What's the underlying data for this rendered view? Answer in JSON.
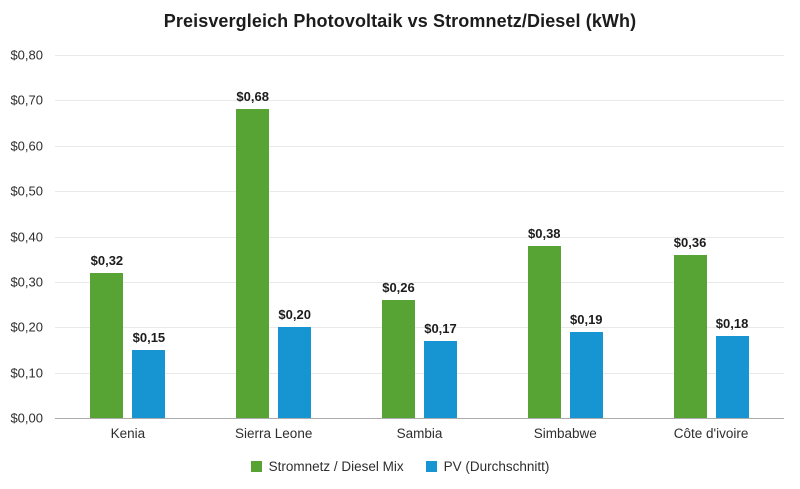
{
  "chart_data": {
    "type": "bar",
    "title": "Preisvergleich Photovoltaik vs Stromnetz/Diesel (kWh)",
    "categories": [
      "Kenia",
      "Sierra Leone",
      "Sambia",
      "Simbabwe",
      "Côte d'ivoire"
    ],
    "series": [
      {
        "name": "Stromnetz / Diesel Mix",
        "color": "#57A333",
        "values": [
          0.32,
          0.68,
          0.26,
          0.38,
          0.36
        ],
        "value_labels": [
          "$0,32",
          "$0,68",
          "$0,26",
          "$0,38",
          "$0,36"
        ]
      },
      {
        "name": "PV (Durchschnitt)",
        "color": "#1795D3",
        "values": [
          0.15,
          0.2,
          0.17,
          0.19,
          0.18
        ],
        "value_labels": [
          "$0,15",
          "$0,20",
          "$0,17",
          "$0,19",
          "$0,18"
        ]
      }
    ],
    "ylim": [
      0,
      0.8
    ],
    "y_ticks": [
      {
        "value": 0.8,
        "label": "$0,80"
      },
      {
        "value": 0.7,
        "label": "$0,70"
      },
      {
        "value": 0.6,
        "label": "$0,60"
      },
      {
        "value": 0.5,
        "label": "$0,50"
      },
      {
        "value": 0.4,
        "label": "$0,40"
      },
      {
        "value": 0.3,
        "label": "$0,30"
      },
      {
        "value": 0.2,
        "label": "$0,20"
      },
      {
        "value": 0.1,
        "label": "$0,10"
      },
      {
        "value": 0.0,
        "label": "$0,00"
      }
    ],
    "grid": true,
    "legend_position": "bottom"
  }
}
